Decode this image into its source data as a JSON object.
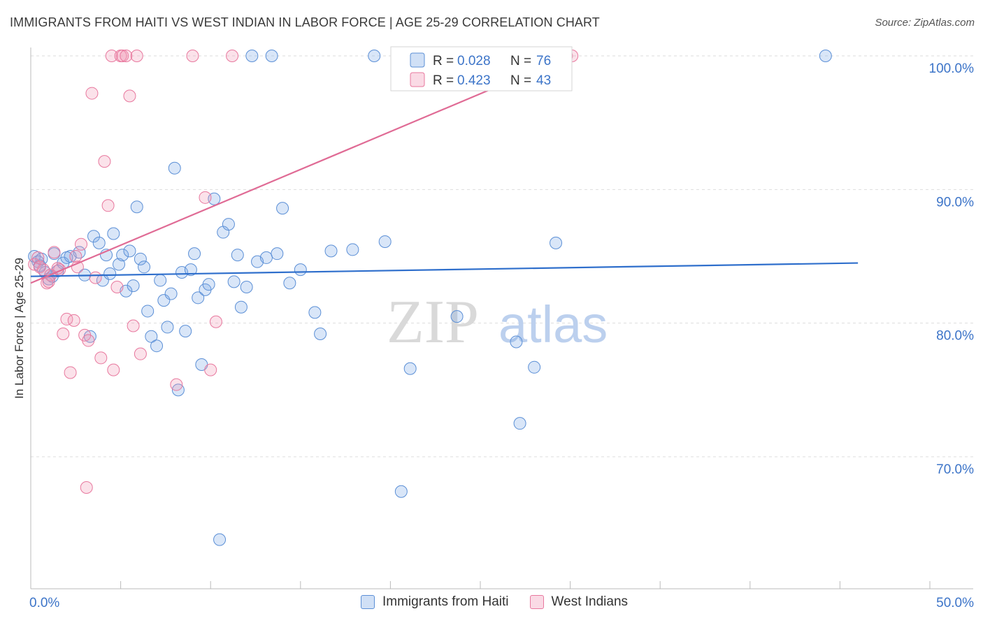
{
  "title": "IMMIGRANTS FROM HAITI VS WEST INDIAN IN LABOR FORCE | AGE 25-29 CORRELATION CHART",
  "source": "Source: ZipAtlas.com",
  "watermark": {
    "zip": "ZIP",
    "atlas": "atlas"
  },
  "colors": {
    "blue": "#5b8fd6",
    "blue_fill": "rgba(120,165,230,0.28)",
    "pink": "#e8789e",
    "pink_fill": "rgba(240,150,180,0.28)",
    "axis_text": "#3c74c8",
    "line_blue": "#2f6fcc",
    "line_pink": "#e06b95"
  },
  "chart_data": {
    "type": "scatter",
    "title": "IMMIGRANTS FROM HAITI VS WEST INDIAN IN LABOR FORCE | AGE 25-29 CORRELATION CHART",
    "xlabel": "",
    "ylabel": "In Labor Force | Age 25-29",
    "xlim": [
      0,
      50
    ],
    "ylim": [
      62,
      101
    ],
    "x_tick_labels": [
      "0.0%",
      "50.0%"
    ],
    "y_ticks": [
      70,
      80,
      90,
      100
    ],
    "y_tick_labels": [
      "70.0%",
      "80.0%",
      "90.0%",
      "100.0%"
    ],
    "grid": true,
    "legend_stats": [
      {
        "r_label": "R = ",
        "r_value": "0.028",
        "n_label": "N = ",
        "n_value": "76"
      },
      {
        "r_label": "R = ",
        "r_value": "0.423",
        "n_label": "N = ",
        "n_value": "43"
      }
    ],
    "series": [
      {
        "name": "Immigrants from Haiti",
        "color": "blue",
        "trend": [
          [
            0,
            83.5
          ],
          [
            46,
            84.5
          ]
        ],
        "points": [
          [
            0.2,
            85.0
          ],
          [
            0.4,
            84.6
          ],
          [
            0.5,
            84.3
          ],
          [
            0.8,
            83.8
          ],
          [
            1.0,
            83.3
          ],
          [
            1.2,
            83.5
          ],
          [
            1.5,
            83.9
          ],
          [
            1.8,
            84.5
          ],
          [
            2.2,
            85.0
          ],
          [
            2.7,
            85.3
          ],
          [
            3.0,
            83.6
          ],
          [
            3.3,
            79.0
          ],
          [
            3.5,
            86.5
          ],
          [
            3.8,
            86.0
          ],
          [
            4.0,
            83.2
          ],
          [
            4.2,
            85.1
          ],
          [
            4.4,
            83.7
          ],
          [
            4.6,
            86.7
          ],
          [
            4.9,
            84.4
          ],
          [
            5.1,
            85.1
          ],
          [
            5.3,
            82.4
          ],
          [
            5.5,
            85.4
          ],
          [
            5.7,
            82.8
          ],
          [
            5.9,
            88.7
          ],
          [
            6.1,
            84.8
          ],
          [
            6.3,
            84.2
          ],
          [
            6.5,
            80.9
          ],
          [
            6.7,
            79.0
          ],
          [
            7.0,
            78.3
          ],
          [
            7.2,
            83.2
          ],
          [
            7.4,
            81.7
          ],
          [
            7.6,
            79.7
          ],
          [
            7.8,
            82.2
          ],
          [
            8.0,
            91.6
          ],
          [
            8.2,
            75.0
          ],
          [
            8.4,
            83.8
          ],
          [
            8.6,
            79.4
          ],
          [
            8.9,
            84.0
          ],
          [
            9.1,
            85.2
          ],
          [
            9.3,
            81.9
          ],
          [
            9.5,
            76.9
          ],
          [
            9.7,
            82.5
          ],
          [
            9.9,
            82.9
          ],
          [
            10.2,
            89.3
          ],
          [
            10.5,
            63.8
          ],
          [
            10.7,
            86.8
          ],
          [
            11.0,
            87.4
          ],
          [
            11.3,
            83.1
          ],
          [
            11.5,
            85.1
          ],
          [
            11.7,
            81.2
          ],
          [
            12.0,
            82.7
          ],
          [
            12.3,
            100.0
          ],
          [
            12.6,
            84.6
          ],
          [
            13.1,
            84.9
          ],
          [
            13.4,
            100.0
          ],
          [
            13.7,
            85.2
          ],
          [
            14.0,
            88.6
          ],
          [
            14.4,
            83.0
          ],
          [
            15.0,
            84.0
          ],
          [
            15.8,
            80.8
          ],
          [
            16.1,
            79.2
          ],
          [
            16.7,
            85.4
          ],
          [
            17.9,
            85.5
          ],
          [
            19.1,
            100.0
          ],
          [
            19.7,
            86.1
          ],
          [
            20.6,
            67.4
          ],
          [
            21.1,
            76.6
          ],
          [
            23.7,
            80.5
          ],
          [
            27.0,
            78.6
          ],
          [
            27.2,
            72.5
          ],
          [
            28.0,
            76.7
          ],
          [
            29.2,
            86.0
          ],
          [
            44.2,
            100.0
          ],
          [
            0.6,
            84.8
          ],
          [
            1.3,
            85.2
          ],
          [
            2.0,
            84.9
          ]
        ]
      },
      {
        "name": "West Indians",
        "color": "pink",
        "trend": [
          [
            0,
            83.0
          ],
          [
            30,
            100.0
          ]
        ],
        "points": [
          [
            0.2,
            84.4
          ],
          [
            0.4,
            84.9
          ],
          [
            0.7,
            84.0
          ],
          [
            0.9,
            83.0
          ],
          [
            1.1,
            83.6
          ],
          [
            1.3,
            85.3
          ],
          [
            1.6,
            84.0
          ],
          [
            1.8,
            79.2
          ],
          [
            2.0,
            80.3
          ],
          [
            2.2,
            76.3
          ],
          [
            2.4,
            80.2
          ],
          [
            2.6,
            84.2
          ],
          [
            2.8,
            85.9
          ],
          [
            3.0,
            79.1
          ],
          [
            3.2,
            78.7
          ],
          [
            3.4,
            97.2
          ],
          [
            3.6,
            83.4
          ],
          [
            3.9,
            77.4
          ],
          [
            4.1,
            92.1
          ],
          [
            4.3,
            88.8
          ],
          [
            4.5,
            100.0
          ],
          [
            4.6,
            76.5
          ],
          [
            4.8,
            82.7
          ],
          [
            5.0,
            100.0
          ],
          [
            5.1,
            100.0
          ],
          [
            5.3,
            100.0
          ],
          [
            5.5,
            97.0
          ],
          [
            5.7,
            79.8
          ],
          [
            5.9,
            100.0
          ],
          [
            6.1,
            77.7
          ],
          [
            8.1,
            75.4
          ],
          [
            9.0,
            100.0
          ],
          [
            9.7,
            89.4
          ],
          [
            10.0,
            76.5
          ],
          [
            10.3,
            80.1
          ],
          [
            11.2,
            100.0
          ],
          [
            3.1,
            67.7
          ],
          [
            1.0,
            83.1
          ],
          [
            0.5,
            84.2
          ],
          [
            29.8,
            100.0
          ],
          [
            30.1,
            100.0
          ],
          [
            2.5,
            85.0
          ],
          [
            1.5,
            84.1
          ]
        ]
      }
    ]
  }
}
